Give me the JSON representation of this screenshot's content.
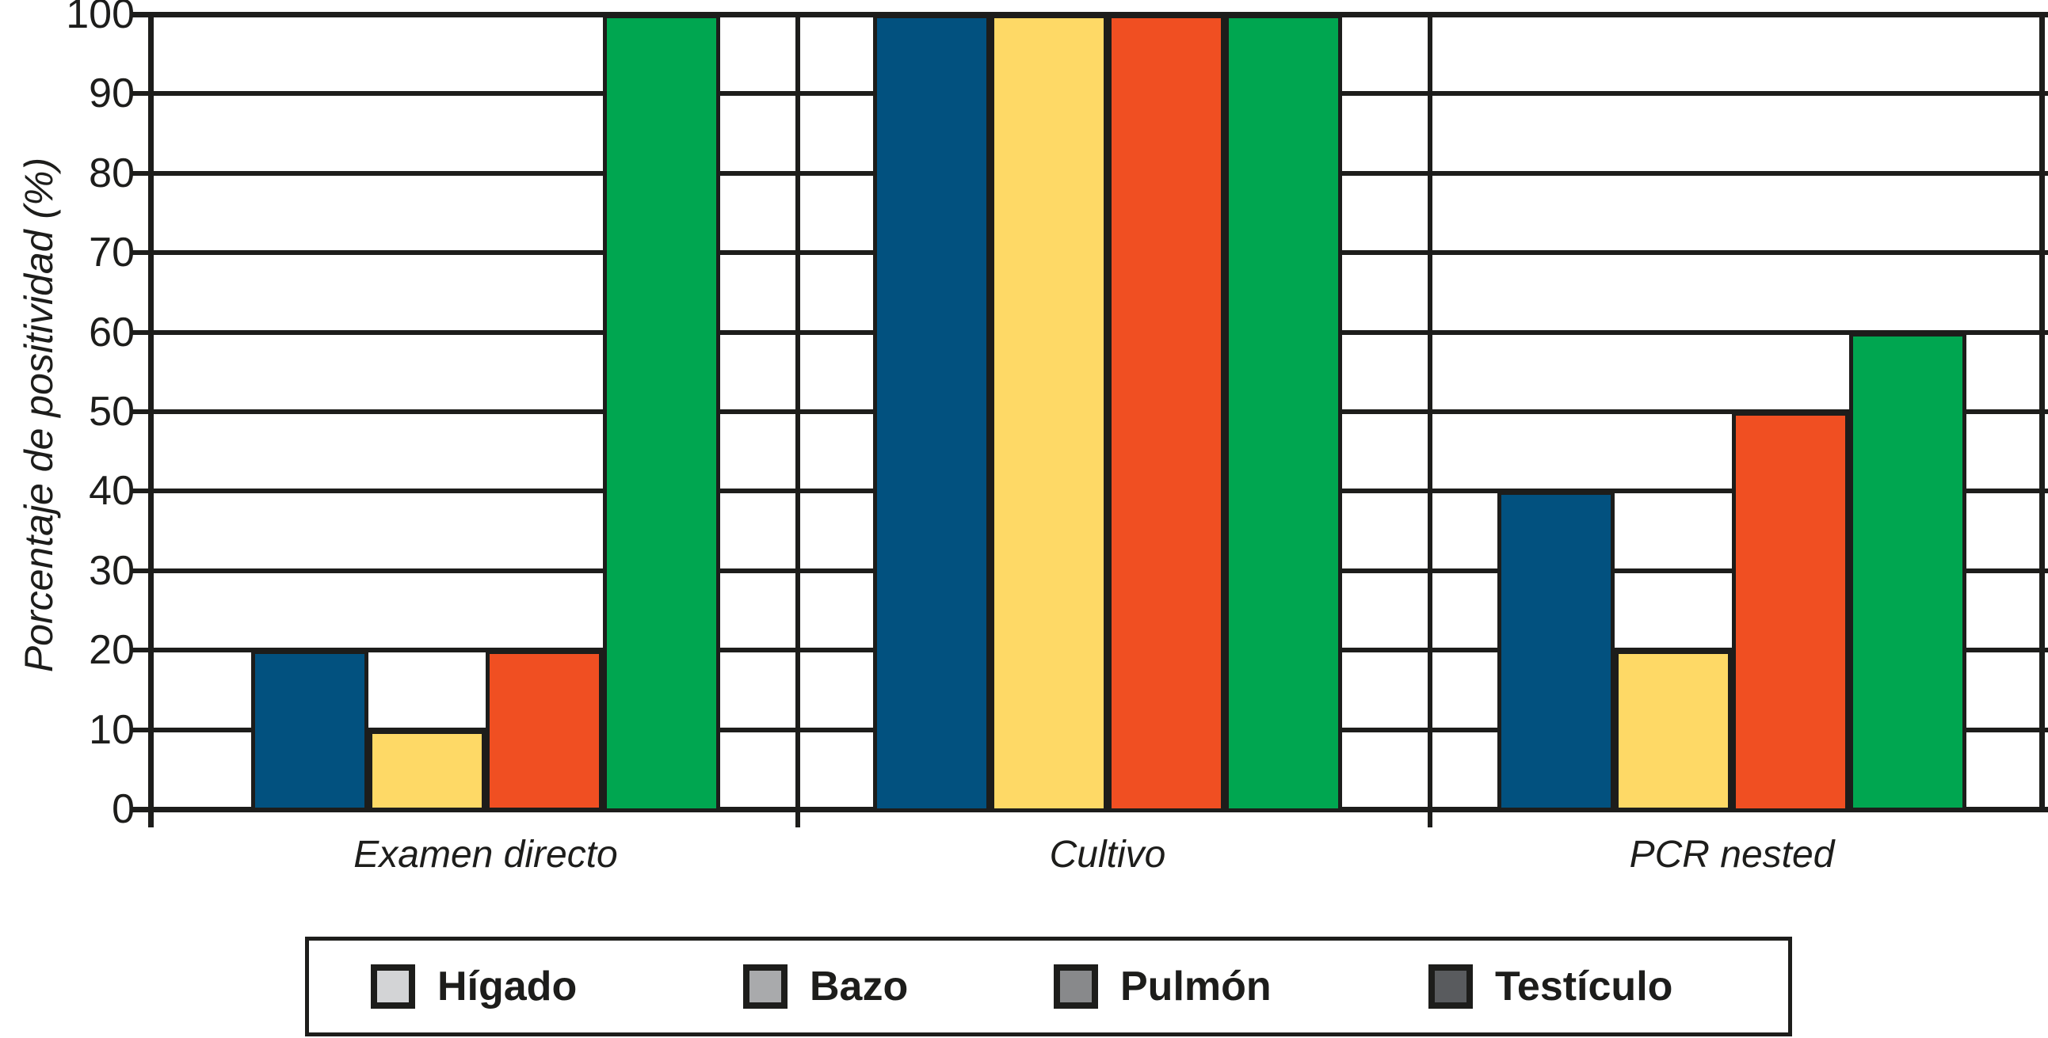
{
  "chart_data": {
    "type": "bar",
    "title": "",
    "xlabel": "",
    "ylabel": "Porcentaje de positividad (%)",
    "ylim": [
      0,
      100
    ],
    "yticks": [
      0,
      10,
      20,
      30,
      40,
      50,
      60,
      70,
      80,
      90,
      100
    ],
    "grid": "horizontal",
    "legend_position": "bottom",
    "categories": [
      "Examen directo",
      "Cultivo",
      "PCR nested"
    ],
    "series": [
      {
        "name": "Hígado",
        "color": "#02517F",
        "values": [
          20,
          100,
          40
        ]
      },
      {
        "name": "Bazo",
        "color": "#FED966",
        "values": [
          10,
          100,
          20
        ]
      },
      {
        "name": "Pulmón",
        "color": "#F04F22",
        "values": [
          20,
          100,
          50
        ]
      },
      {
        "name": "Testículo",
        "color": "#00A650",
        "values": [
          100,
          100,
          60
        ]
      }
    ],
    "legend": {
      "items": [
        {
          "label": "Hígado",
          "swatch_color": "#D3D4D6"
        },
        {
          "label": "Bazo",
          "swatch_color": "#A9AAAC"
        },
        {
          "label": "Pulmón",
          "swatch_color": "#88898B"
        },
        {
          "label": "Testículo",
          "swatch_color": "#595B5E"
        }
      ]
    },
    "line_color": "#1d1d1b"
  }
}
